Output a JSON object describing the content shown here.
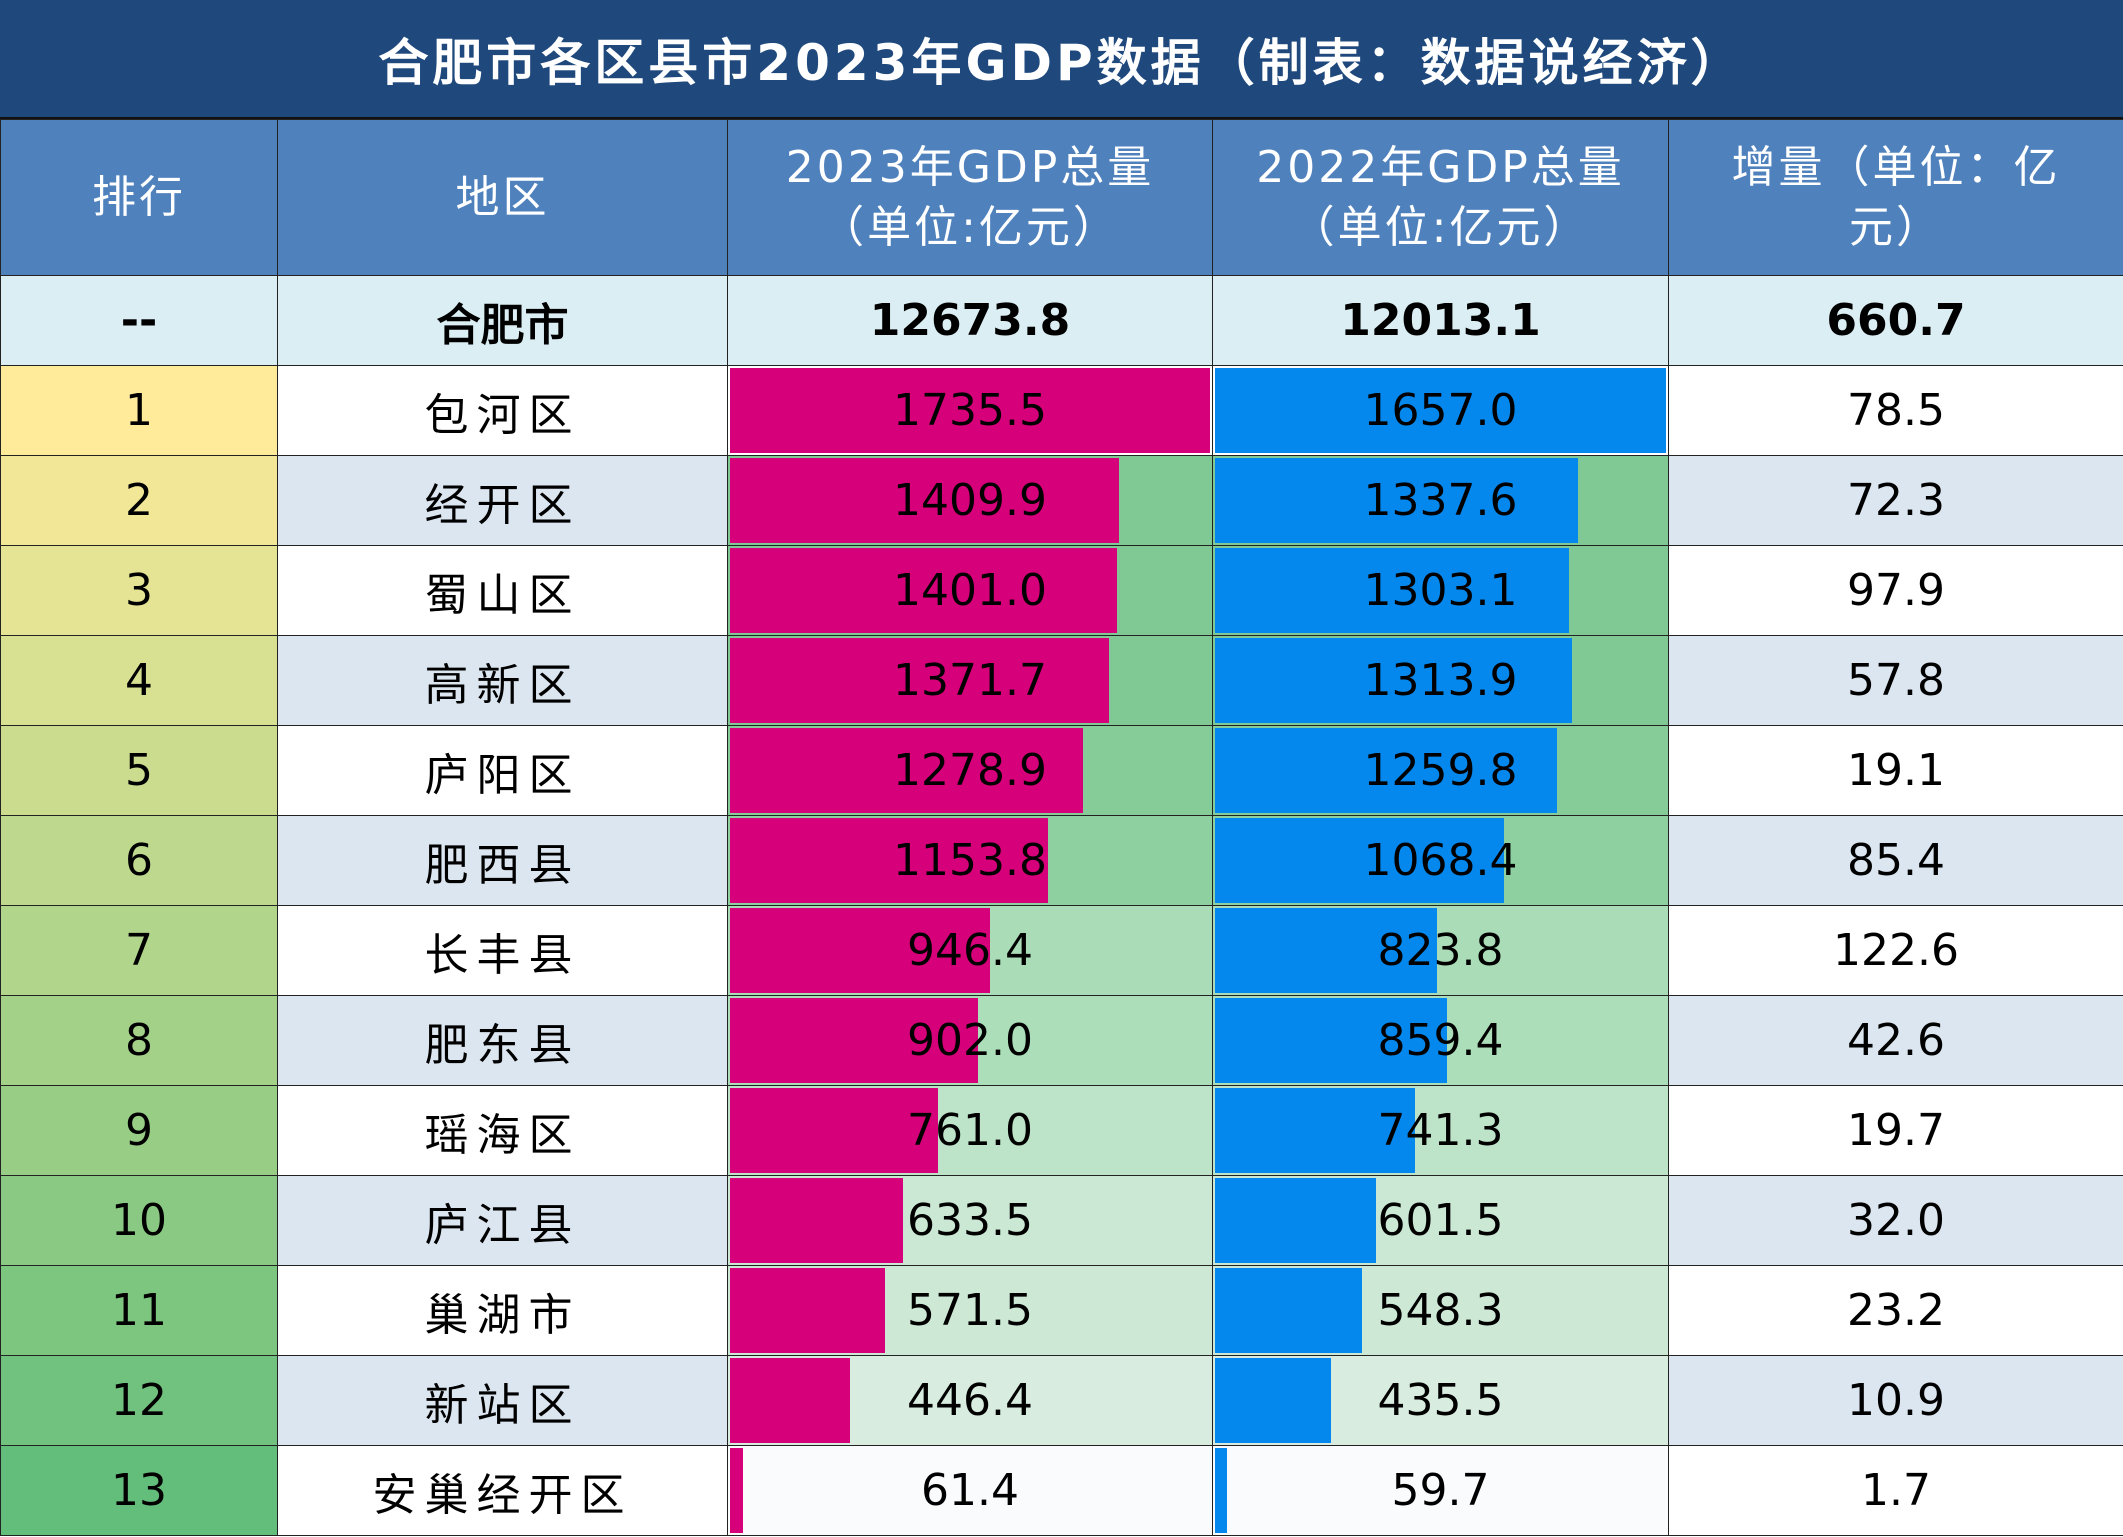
{
  "title": "合肥市各区县市2023年GDP数据（制表：数据说经济）",
  "headers": {
    "rank": "排行",
    "region": "地区",
    "gdp2023": [
      "2023年GDP总量",
      "（单位:亿元）"
    ],
    "gdp2022": [
      "2022年GDP总量",
      "（单位:亿元）"
    ],
    "increase": [
      "增量（单位：亿",
      "元）"
    ]
  },
  "total": {
    "rank": "--",
    "region": "合肥市",
    "gdp2023": "12673.8",
    "gdp2022": "12013.1",
    "increase": "660.7"
  },
  "colors": {
    "title_bg": "#1f497d",
    "header_bg": "#4f81bd",
    "total_bg": "#dbeef4",
    "bar_2023": "#d6007a",
    "bar_2022": "#0588ee",
    "row_alt_bg": "#dce6f0",
    "rank_scale_start": "#ffeb99",
    "rank_scale_end": "#63be7b"
  },
  "chart_data": {
    "type": "table",
    "title": "合肥市各区县市2023年GDP数据（制表：数据说经济）",
    "columns": [
      "排行",
      "地区",
      "2023年GDP总量（单位:亿元）",
      "2022年GDP总量（单位:亿元）",
      "增量（单位：亿元）"
    ],
    "rows": [
      {
        "rank": "1",
        "region": "包河区",
        "gdp2023": "1735.5",
        "gdp2022": "1657.0",
        "increase": "78.5",
        "cell_bg": "#ffffff"
      },
      {
        "rank": "2",
        "region": "经开区",
        "gdp2023": "1409.9",
        "gdp2022": "1337.6",
        "increase": "72.3",
        "cell_bg": "#80c994"
      },
      {
        "rank": "3",
        "region": "蜀山区",
        "gdp2023": "1401.0",
        "gdp2022": "1303.1",
        "increase": "97.9",
        "cell_bg": "#80c994"
      },
      {
        "rank": "4",
        "region": "高新区",
        "gdp2023": "1371.7",
        "gdp2022": "1313.9",
        "increase": "57.8",
        "cell_bg": "#80c994"
      },
      {
        "rank": "5",
        "region": "庐阳区",
        "gdp2023": "1278.9",
        "gdp2022": "1259.8",
        "increase": "19.1",
        "cell_bg": "#86cc99"
      },
      {
        "rank": "6",
        "region": "肥西县",
        "gdp2023": "1153.8",
        "gdp2022": "1068.4",
        "increase": "85.4",
        "cell_bg": "#8fd0a0"
      },
      {
        "rank": "7",
        "region": "长丰县",
        "gdp2023": "946.4",
        "gdp2022": "823.8",
        "increase": "122.6",
        "cell_bg": "#a9dcb7"
      },
      {
        "rank": "8",
        "region": "肥东县",
        "gdp2023": "902.0",
        "gdp2022": "859.4",
        "increase": "42.6",
        "cell_bg": "#acdeb9"
      },
      {
        "rank": "9",
        "region": "瑶海区",
        "gdp2023": "761.0",
        "gdp2022": "741.3",
        "increase": "19.7",
        "cell_bg": "#bde4c9"
      },
      {
        "rank": "10",
        "region": "庐江县",
        "gdp2023": "633.5",
        "gdp2022": "601.5",
        "increase": "32.0",
        "cell_bg": "#cae8d3"
      },
      {
        "rank": "11",
        "region": "巢湖市",
        "gdp2023": "571.5",
        "gdp2022": "548.3",
        "increase": "23.2",
        "cell_bg": "#cde9d6"
      },
      {
        "rank": "12",
        "region": "新站区",
        "gdp2023": "446.4",
        "gdp2022": "435.5",
        "increase": "10.9",
        "cell_bg": "#d8ecdf"
      },
      {
        "rank": "13",
        "region": "安巢经开区",
        "gdp2023": "61.4",
        "gdp2022": "59.7",
        "increase": "1.7",
        "cell_bg": "#fafbfd"
      }
    ]
  }
}
